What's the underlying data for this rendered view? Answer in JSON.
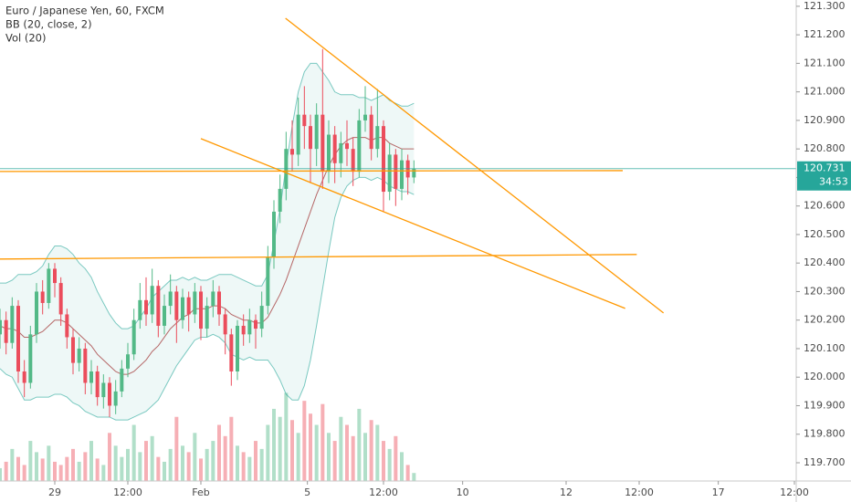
{
  "chart_data": {
    "type": "candlestick",
    "title": "Euro / Japanese Yen, 60, FXCM",
    "indicators": [
      "BB (20, close, 2)",
      "Vol (20)"
    ],
    "up_color": "#53b987",
    "down_color": "#eb4d5c",
    "open": [
      120.15,
      120.2,
      120.12,
      120.25,
      120.02,
      119.98,
      120.15,
      120.3,
      120.26,
      120.38,
      120.33,
      120.22,
      120.14,
      120.05,
      120.1,
      119.98,
      120.02,
      119.93,
      119.98,
      119.9,
      119.95,
      120.03,
      120.08,
      120.2,
      120.27,
      120.22,
      120.32,
      120.18,
      120.25,
      120.3,
      120.2,
      120.28,
      120.22,
      120.3,
      120.17,
      120.25,
      120.3,
      120.22,
      120.15,
      120.02,
      120.18,
      120.15,
      120.2,
      120.17,
      120.25,
      120.42,
      120.58,
      120.66,
      120.8,
      120.78,
      120.92,
      120.88,
      120.8,
      120.92,
      120.72,
      120.85,
      120.75,
      120.82,
      120.8,
      120.72,
      120.9,
      120.92,
      120.8,
      120.88,
      120.65,
      120.78,
      120.66,
      120.76,
      120.7
    ],
    "high": [
      120.24,
      120.23,
      120.28,
      120.27,
      120.06,
      120.18,
      120.33,
      120.34,
      120.4,
      120.4,
      120.35,
      120.24,
      120.17,
      120.14,
      120.12,
      120.06,
      120.04,
      120.01,
      120.0,
      119.99,
      120.06,
      120.12,
      120.24,
      120.33,
      120.35,
      120.38,
      120.34,
      120.29,
      120.36,
      120.32,
      120.31,
      120.3,
      120.33,
      120.32,
      120.28,
      120.34,
      120.32,
      120.24,
      120.17,
      120.2,
      120.22,
      120.24,
      120.22,
      120.3,
      120.46,
      120.62,
      120.71,
      120.86,
      120.9,
      120.98,
      121.02,
      120.92,
      120.96,
      121.15,
      120.9,
      120.88,
      120.86,
      120.9,
      120.84,
      120.94,
      121.02,
      120.95,
      121.01,
      120.9,
      120.82,
      120.8,
      120.8,
      120.78,
      120.76
    ],
    "low": [
      120.1,
      120.08,
      120.1,
      119.98,
      119.93,
      119.96,
      120.12,
      120.22,
      120.24,
      120.28,
      120.18,
      120.1,
      120.01,
      120.02,
      119.94,
      119.94,
      119.9,
      119.89,
      119.86,
      119.87,
      119.93,
      120.0,
      120.06,
      120.17,
      120.18,
      120.19,
      120.14,
      120.15,
      120.22,
      120.12,
      120.17,
      120.16,
      120.19,
      120.13,
      120.14,
      120.21,
      120.18,
      120.08,
      119.97,
      119.99,
      120.11,
      120.12,
      120.1,
      120.14,
      120.22,
      120.38,
      120.54,
      120.62,
      120.72,
      120.74,
      120.8,
      120.68,
      120.74,
      120.66,
      120.68,
      120.68,
      120.7,
      120.74,
      120.67,
      120.7,
      120.86,
      120.76,
      120.77,
      120.58,
      120.62,
      120.6,
      120.62,
      120.64,
      120.68
    ],
    "close": [
      120.2,
      120.12,
      120.25,
      120.02,
      119.98,
      120.15,
      120.3,
      120.26,
      120.38,
      120.33,
      120.22,
      120.14,
      120.05,
      120.1,
      119.98,
      120.02,
      119.93,
      119.98,
      119.9,
      119.95,
      120.03,
      120.08,
      120.2,
      120.27,
      120.22,
      120.32,
      120.18,
      120.25,
      120.3,
      120.2,
      120.28,
      120.22,
      120.3,
      120.17,
      120.25,
      120.3,
      120.22,
      120.15,
      120.02,
      120.18,
      120.15,
      120.2,
      120.17,
      120.25,
      120.42,
      120.58,
      120.66,
      120.8,
      120.78,
      120.92,
      120.88,
      120.8,
      120.92,
      120.72,
      120.85,
      120.75,
      120.82,
      120.8,
      120.72,
      120.9,
      120.92,
      120.8,
      120.88,
      120.65,
      120.78,
      120.66,
      120.76,
      120.7,
      120.73
    ],
    "volume": [
      8,
      12,
      20,
      15,
      10,
      25,
      18,
      14,
      22,
      12,
      10,
      15,
      20,
      12,
      18,
      25,
      14,
      10,
      30,
      22,
      15,
      20,
      35,
      18,
      25,
      28,
      15,
      12,
      20,
      40,
      22,
      18,
      30,
      14,
      20,
      25,
      35,
      28,
      40,
      22,
      18,
      15,
      25,
      20,
      35,
      45,
      40,
      55,
      38,
      30,
      50,
      42,
      35,
      48,
      30,
      25,
      40,
      35,
      28,
      45,
      30,
      38,
      35,
      25,
      20,
      28,
      18,
      10,
      5
    ],
    "vlim": [
      0,
      300
    ],
    "bands": {
      "color": "#26a69a",
      "basis_color": "#9c2a2a",
      "upper": [
        120.33,
        120.33,
        120.34,
        120.36,
        120.36,
        120.36,
        120.37,
        120.39,
        120.43,
        120.46,
        120.46,
        120.45,
        120.43,
        120.4,
        120.38,
        120.35,
        120.3,
        120.26,
        120.22,
        120.19,
        120.17,
        120.17,
        120.18,
        120.21,
        120.24,
        120.28,
        120.3,
        120.32,
        120.34,
        120.34,
        120.35,
        120.34,
        120.35,
        120.34,
        120.34,
        120.35,
        120.36,
        120.36,
        120.36,
        120.35,
        120.34,
        120.33,
        120.32,
        120.32,
        120.36,
        120.47,
        120.59,
        120.74,
        120.88,
        121.0,
        121.07,
        121.1,
        121.1,
        121.07,
        121.04,
        121.0,
        120.99,
        120.99,
        120.99,
        120.98,
        120.98,
        120.97,
        120.98,
        120.99,
        120.97,
        120.96,
        120.95,
        120.95,
        120.96
      ],
      "basis": [
        120.18,
        120.17,
        120.17,
        120.16,
        120.14,
        120.14,
        120.15,
        120.16,
        120.18,
        120.2,
        120.2,
        120.19,
        120.17,
        120.15,
        120.13,
        120.11,
        120.08,
        120.06,
        120.04,
        120.02,
        120.01,
        120.01,
        120.02,
        120.04,
        120.06,
        120.09,
        120.11,
        120.14,
        120.17,
        120.19,
        120.21,
        120.22,
        120.24,
        120.24,
        120.24,
        120.25,
        120.25,
        120.24,
        120.22,
        120.21,
        120.2,
        120.2,
        120.19,
        120.19,
        120.21,
        120.25,
        120.29,
        120.34,
        120.4,
        120.46,
        120.52,
        120.58,
        120.64,
        120.69,
        120.74,
        120.78,
        120.81,
        120.83,
        120.84,
        120.84,
        120.84,
        120.83,
        120.84,
        120.84,
        120.82,
        120.81,
        120.8,
        120.8,
        120.8
      ],
      "lower": [
        120.03,
        120.01,
        120.0,
        119.96,
        119.92,
        119.92,
        119.93,
        119.93,
        119.93,
        119.94,
        119.94,
        119.93,
        119.91,
        119.9,
        119.88,
        119.87,
        119.86,
        119.86,
        119.86,
        119.85,
        119.85,
        119.85,
        119.86,
        119.87,
        119.88,
        119.9,
        119.92,
        119.96,
        120.0,
        120.04,
        120.07,
        120.1,
        120.13,
        120.14,
        120.14,
        120.15,
        120.14,
        120.12,
        120.08,
        120.07,
        120.06,
        120.07,
        120.06,
        120.06,
        120.06,
        120.03,
        119.99,
        119.94,
        119.92,
        119.92,
        119.97,
        120.06,
        120.18,
        120.31,
        120.44,
        120.56,
        120.63,
        120.67,
        120.69,
        120.7,
        120.7,
        120.69,
        120.7,
        120.69,
        120.67,
        120.66,
        120.65,
        120.65,
        120.64
      ]
    },
    "trendline_color": "#ff9800",
    "trendlines": [
      {
        "x": [
          46.9,
          109
        ],
        "y": [
          121.258,
          120.225
        ]
      },
      {
        "x": [
          33,
          102.7
        ],
        "y": [
          120.836,
          120.241
        ]
      },
      {
        "x": [
          0,
          102.3
        ],
        "y": [
          120.721,
          120.724
        ]
      },
      {
        "x": [
          0,
          104.6
        ],
        "y": [
          120.414,
          120.43
        ]
      }
    ],
    "price_line": {
      "value": 120.731,
      "label": "120.731",
      "color": "#26a69a"
    },
    "countdown": "34:53",
    "xlim": [
      0,
      130.8
    ],
    "ylim": [
      119.636,
      121.322
    ],
    "xticks": [
      {
        "value": 9,
        "label": "29"
      },
      {
        "value": 21,
        "label": "12:00"
      },
      {
        "value": 33,
        "label": "Feb"
      },
      {
        "value": 50.5,
        "label": "5"
      },
      {
        "value": 63,
        "label": "12:00"
      },
      {
        "value": 76,
        "label": "10"
      },
      {
        "value": 93,
        "label": "12"
      },
      {
        "value": 105,
        "label": "12:00"
      },
      {
        "value": 118,
        "label": "17"
      },
      {
        "value": 130.5,
        "label": "12:00"
      }
    ],
    "yticks": [
      {
        "value": 119.7,
        "label": "119.700"
      },
      {
        "value": 119.8,
        "label": "119.800"
      },
      {
        "value": 119.9,
        "label": "119.900"
      },
      {
        "value": 120.0,
        "label": "120.000"
      },
      {
        "value": 120.1,
        "label": "120.100"
      },
      {
        "value": 120.2,
        "label": "120.200"
      },
      {
        "value": 120.3,
        "label": "120.300"
      },
      {
        "value": 120.4,
        "label": "120.400"
      },
      {
        "value": 120.5,
        "label": "120.500"
      },
      {
        "value": 120.6,
        "label": "120.600"
      },
      {
        "value": 120.7,
        "label": "120.700"
      },
      {
        "value": 120.8,
        "label": "120.800"
      },
      {
        "value": 120.9,
        "label": "120.900"
      },
      {
        "value": 121.0,
        "label": "121.000"
      },
      {
        "value": 121.1,
        "label": "121.100"
      },
      {
        "value": 121.2,
        "label": "121.200"
      },
      {
        "value": 121.3,
        "label": "121.300"
      }
    ]
  }
}
